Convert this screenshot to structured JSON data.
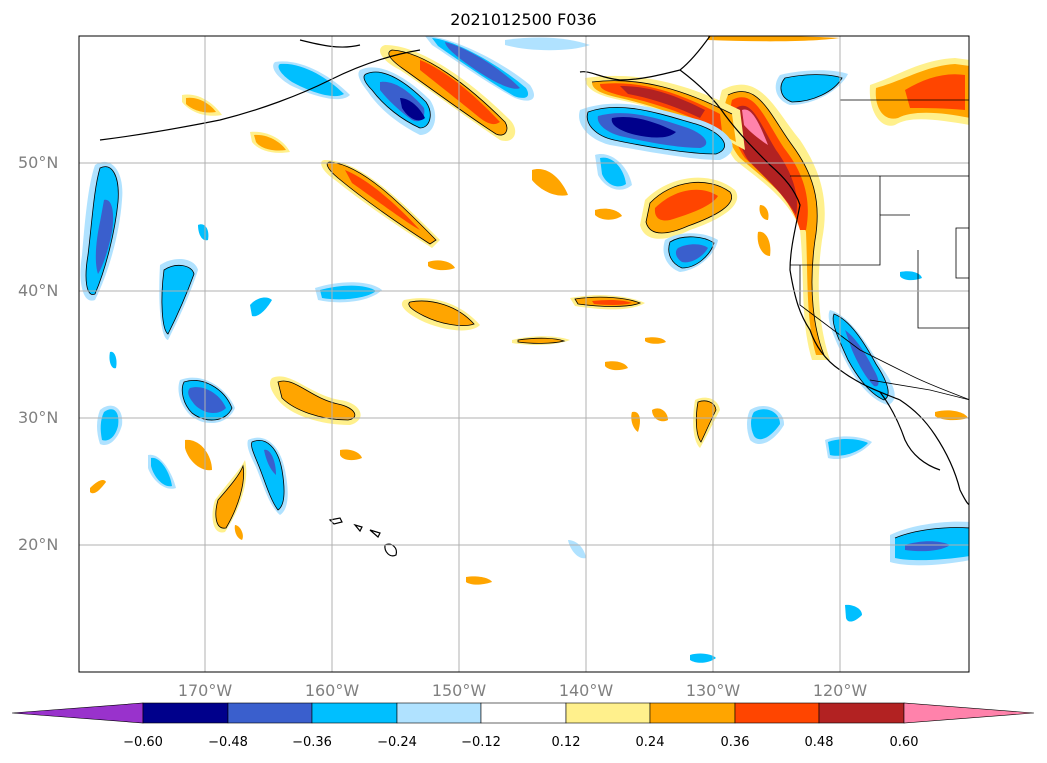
{
  "title": "2021012500 F036",
  "lat_labels": [
    "50°N",
    "40°N",
    "30°N",
    "20°N"
  ],
  "lon_labels": [
    "170°W",
    "160°W",
    "150°W",
    "140°W",
    "130°W",
    "120°W"
  ],
  "colorbar": {
    "ticks": [
      "−0.60",
      "−0.48",
      "−0.36",
      "−0.24",
      "−0.12",
      "0.12",
      "0.24",
      "0.36",
      "0.48",
      "0.60"
    ],
    "colors": {
      "lt_neg060": "#9932cc",
      "neg060_neg048": "#00008b",
      "neg048_neg036": "#3a5fcd",
      "neg036_neg024": "#00bfff",
      "neg024_neg012": "#b0e2ff",
      "neg012_012": "#ffffff",
      "p012_024": "#fff08c",
      "p024_036": "#ffa500",
      "p036_048": "#ff4500",
      "p048_060": "#b22222",
      "gt_060": "#ff82ab"
    }
  }
}
